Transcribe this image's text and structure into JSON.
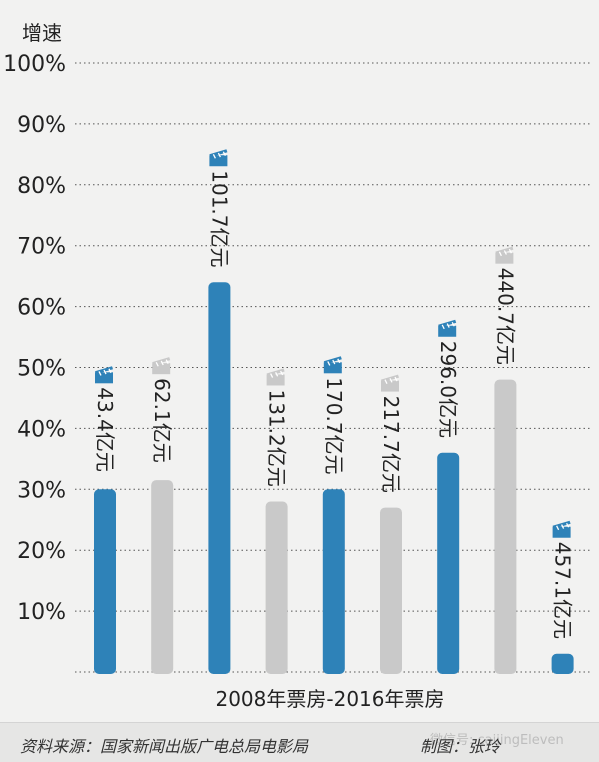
{
  "chart_data": {
    "type": "bar",
    "ylabel": "增速",
    "xlabel": "2008年票房-2016年票房",
    "ylim": [
      0,
      100
    ],
    "yticks": [
      "10%",
      "20%",
      "30%",
      "40%",
      "50%",
      "60%",
      "70%",
      "80%",
      "90%",
      "100%"
    ],
    "grid": true,
    "values": [
      30,
      31.5,
      64,
      28,
      30,
      27,
      36,
      48,
      3
    ],
    "data_labels": [
      "43.4亿元",
      "62.1亿元",
      "101.7亿元",
      "131.2亿元",
      "170.7亿元",
      "217.7亿元",
      "296.0亿元",
      "440.7亿元",
      "457.1亿元"
    ],
    "bar_colors": [
      "#2e82b8",
      "#c9c9c9",
      "#2e82b8",
      "#c9c9c9",
      "#2e82b8",
      "#c9c9c9",
      "#2e82b8",
      "#c9c9c9",
      "#2e82b8"
    ],
    "marker_icon": "clapperboard-icon"
  },
  "footer": {
    "source": "资料来源：国家新闻出版广电总局电影局",
    "maker": "制图：张玲",
    "watermark": "微信号: caijingEleven"
  }
}
